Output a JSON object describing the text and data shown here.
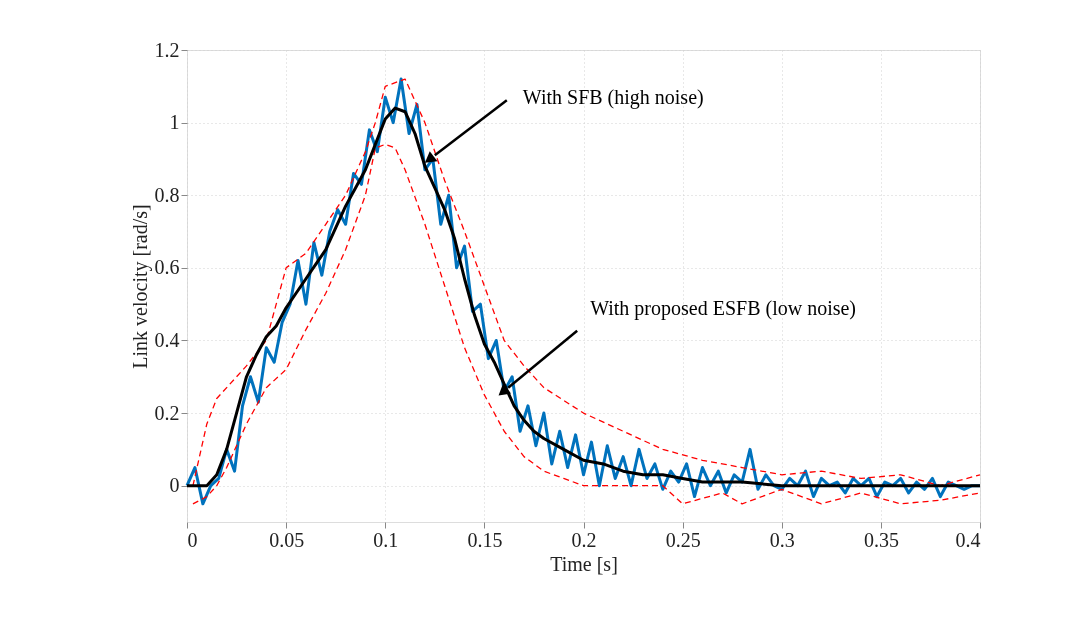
{
  "chart_data": {
    "type": "line",
    "xlabel": "Time [s]",
    "ylabel": "Link velocity [rad/s]",
    "xlim": [
      0,
      0.4
    ],
    "ylim": [
      -0.1,
      1.2
    ],
    "xticks": [
      0,
      0.05,
      0.1,
      0.15,
      0.2,
      0.25,
      0.3,
      0.35,
      0.4
    ],
    "yticks": [
      0,
      0.2,
      0.4,
      0.6,
      0.8,
      1,
      1.2
    ],
    "grid": true,
    "marker": "none",
    "annotations": [
      {
        "text": "With SFB (high noise)",
        "x": 0.125,
        "y": 0.91
      },
      {
        "text": "With proposed ESFB (low noise)",
        "x": 0.162,
        "y": 0.27
      }
    ],
    "series": [
      {
        "color": "#0072bd",
        "line_style": "solid",
        "x": [
          0,
          0.004,
          0.008,
          0.012,
          0.016,
          0.02,
          0.024,
          0.028,
          0.032,
          0.036,
          0.04,
          0.044,
          0.048,
          0.052,
          0.056,
          0.06,
          0.064,
          0.068,
          0.072,
          0.076,
          0.08,
          0.084,
          0.088,
          0.092,
          0.096,
          0.1,
          0.104,
          0.108,
          0.112,
          0.116,
          0.12,
          0.124,
          0.128,
          0.132,
          0.136,
          0.14,
          0.144,
          0.148,
          0.152,
          0.156,
          0.16,
          0.164,
          0.168,
          0.172,
          0.176,
          0.18,
          0.184,
          0.188,
          0.192,
          0.196,
          0.2,
          0.204,
          0.208,
          0.212,
          0.216,
          0.22,
          0.224,
          0.228,
          0.232,
          0.236,
          0.24,
          0.244,
          0.248,
          0.252,
          0.256,
          0.26,
          0.264,
          0.268,
          0.272,
          0.276,
          0.28,
          0.284,
          0.288,
          0.292,
          0.296,
          0.3,
          0.304,
          0.308,
          0.312,
          0.316,
          0.32,
          0.324,
          0.328,
          0.332,
          0.336,
          0.34,
          0.344,
          0.348,
          0.352,
          0.356,
          0.36,
          0.364,
          0.368,
          0.372,
          0.376,
          0.38,
          0.384,
          0.388,
          0.392,
          0.396,
          0.4
        ],
        "values": [
          0,
          0.05,
          -0.05,
          0.0,
          0.02,
          0.1,
          0.04,
          0.22,
          0.3,
          0.23,
          0.38,
          0.34,
          0.45,
          0.5,
          0.62,
          0.5,
          0.67,
          0.58,
          0.7,
          0.76,
          0.72,
          0.86,
          0.83,
          0.98,
          0.92,
          1.07,
          1.0,
          1.12,
          0.97,
          1.05,
          0.87,
          0.9,
          0.72,
          0.8,
          0.6,
          0.66,
          0.48,
          0.5,
          0.35,
          0.4,
          0.26,
          0.3,
          0.15,
          0.22,
          0.11,
          0.2,
          0.06,
          0.15,
          0.05,
          0.14,
          0.03,
          0.12,
          0.0,
          0.11,
          0.02,
          0.08,
          0.0,
          0.1,
          0.02,
          0.06,
          -0.01,
          0.04,
          0.01,
          0.06,
          -0.03,
          0.05,
          0.0,
          0.04,
          -0.02,
          0.03,
          0.01,
          0.1,
          -0.01,
          0.03,
          0.0,
          -0.01,
          0.02,
          0.0,
          0.04,
          -0.03,
          0.02,
          0.0,
          0.01,
          -0.02,
          0.02,
          0.0,
          0.02,
          -0.03,
          0.01,
          0.0,
          0.02,
          -0.02,
          0.01,
          -0.01,
          0.02,
          -0.03,
          0.01,
          0.0,
          -0.01,
          0.0,
          0.0
        ]
      },
      {
        "color": "#ff0000",
        "line_style": "dashed",
        "x": [
          0.003,
          0.01,
          0.015,
          0.03,
          0.04,
          0.045,
          0.05,
          0.06,
          0.07,
          0.08,
          0.09,
          0.095,
          0.1,
          0.11,
          0.12,
          0.13,
          0.14,
          0.15,
          0.16,
          0.17,
          0.18,
          0.2,
          0.22,
          0.24,
          0.26,
          0.28,
          0.3,
          0.32,
          0.34,
          0.36,
          0.38,
          0.4
        ],
        "values": [
          0.0,
          0.17,
          0.24,
          0.33,
          0.4,
          0.5,
          0.6,
          0.64,
          0.72,
          0.8,
          0.92,
          1.0,
          1.1,
          1.12,
          1.0,
          0.84,
          0.7,
          0.55,
          0.4,
          0.33,
          0.27,
          0.2,
          0.15,
          0.1,
          0.07,
          0.05,
          0.03,
          0.04,
          0.02,
          0.03,
          0.0,
          0.03
        ]
      },
      {
        "color": "#ff0000",
        "line_style": "dashed",
        "x": [
          0.003,
          0.01,
          0.015,
          0.02,
          0.03,
          0.04,
          0.05,
          0.06,
          0.07,
          0.08,
          0.09,
          0.095,
          0.1,
          0.105,
          0.11,
          0.12,
          0.13,
          0.14,
          0.15,
          0.16,
          0.17,
          0.18,
          0.19,
          0.2,
          0.22,
          0.24,
          0.25,
          0.27,
          0.28,
          0.3,
          0.32,
          0.34,
          0.36,
          0.38,
          0.4
        ],
        "values": [
          -0.05,
          -0.03,
          0.0,
          0.05,
          0.17,
          0.27,
          0.32,
          0.43,
          0.53,
          0.65,
          0.8,
          0.93,
          0.94,
          0.93,
          0.87,
          0.72,
          0.55,
          0.38,
          0.25,
          0.15,
          0.08,
          0.04,
          0.02,
          0.0,
          0.0,
          0.0,
          -0.05,
          -0.02,
          -0.05,
          -0.01,
          -0.05,
          -0.02,
          -0.05,
          -0.04,
          -0.02
        ]
      },
      {
        "color": "#000000",
        "line_style": "solid",
        "x": [
          0,
          0.01,
          0.015,
          0.02,
          0.025,
          0.03,
          0.035,
          0.04,
          0.045,
          0.05,
          0.055,
          0.06,
          0.065,
          0.07,
          0.075,
          0.08,
          0.085,
          0.09,
          0.095,
          0.1,
          0.105,
          0.11,
          0.115,
          0.12,
          0.125,
          0.13,
          0.135,
          0.14,
          0.145,
          0.15,
          0.155,
          0.16,
          0.165,
          0.17,
          0.175,
          0.18,
          0.19,
          0.2,
          0.21,
          0.22,
          0.23,
          0.24,
          0.25,
          0.26,
          0.27,
          0.28,
          0.3,
          0.32,
          0.34,
          0.36,
          0.38,
          0.4
        ],
        "values": [
          0,
          0.0,
          0.03,
          0.1,
          0.2,
          0.3,
          0.36,
          0.41,
          0.44,
          0.49,
          0.53,
          0.57,
          0.61,
          0.65,
          0.71,
          0.77,
          0.82,
          0.87,
          0.94,
          1.01,
          1.04,
          1.03,
          0.97,
          0.88,
          0.82,
          0.76,
          0.68,
          0.57,
          0.47,
          0.39,
          0.34,
          0.28,
          0.22,
          0.18,
          0.15,
          0.13,
          0.1,
          0.07,
          0.06,
          0.04,
          0.03,
          0.03,
          0.02,
          0.01,
          0.01,
          0.01,
          0.0,
          0.0,
          0.0,
          0.0,
          0.0,
          0.0
        ]
      }
    ]
  }
}
